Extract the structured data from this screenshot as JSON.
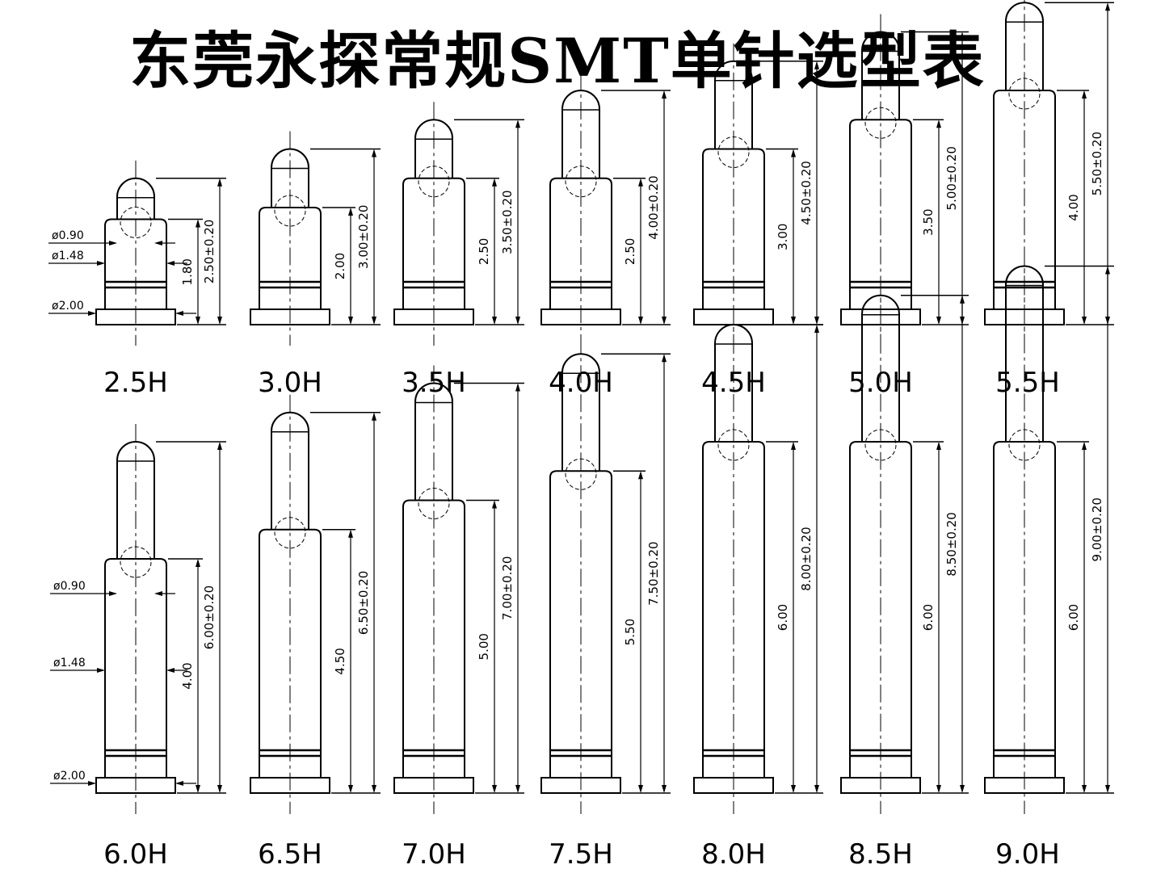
{
  "title": "东莞永探常规SMT单针选型表",
  "diameter_labels": {
    "tip": "ø0.90",
    "body": "ø1.48",
    "base": "ø2.00"
  },
  "pins": [
    {
      "model": "2.5H",
      "height": "2.50±0.20",
      "body": "1.80"
    },
    {
      "model": "3.0H",
      "height": "3.00±0.20",
      "body": "2.00"
    },
    {
      "model": "3.5H",
      "height": "3.50±0.20",
      "body": "2.50"
    },
    {
      "model": "4.0H",
      "height": "4.00±0.20",
      "body": "2.50"
    },
    {
      "model": "4.5H",
      "height": "4.50±0.20",
      "body": "3.00"
    },
    {
      "model": "5.0H",
      "height": "5.00±0.20",
      "body": "3.50"
    },
    {
      "model": "5.5H",
      "height": "5.50±0.20",
      "body": "4.00"
    },
    {
      "model": "6.0H",
      "height": "6.00±0.20",
      "body": "4.00"
    },
    {
      "model": "6.5H",
      "height": "6.50±0.20",
      "body": "4.50"
    },
    {
      "model": "7.0H",
      "height": "7.00±0.20",
      "body": "5.00"
    },
    {
      "model": "7.5H",
      "height": "7.50±0.20",
      "body": "5.50"
    },
    {
      "model": "8.0H",
      "height": "8.00±0.20",
      "body": "6.00"
    },
    {
      "model": "8.5H",
      "height": "8.50±0.20",
      "body": "6.00"
    },
    {
      "model": "9.0H",
      "height": "9.00±0.20",
      "body": "6.00"
    }
  ]
}
